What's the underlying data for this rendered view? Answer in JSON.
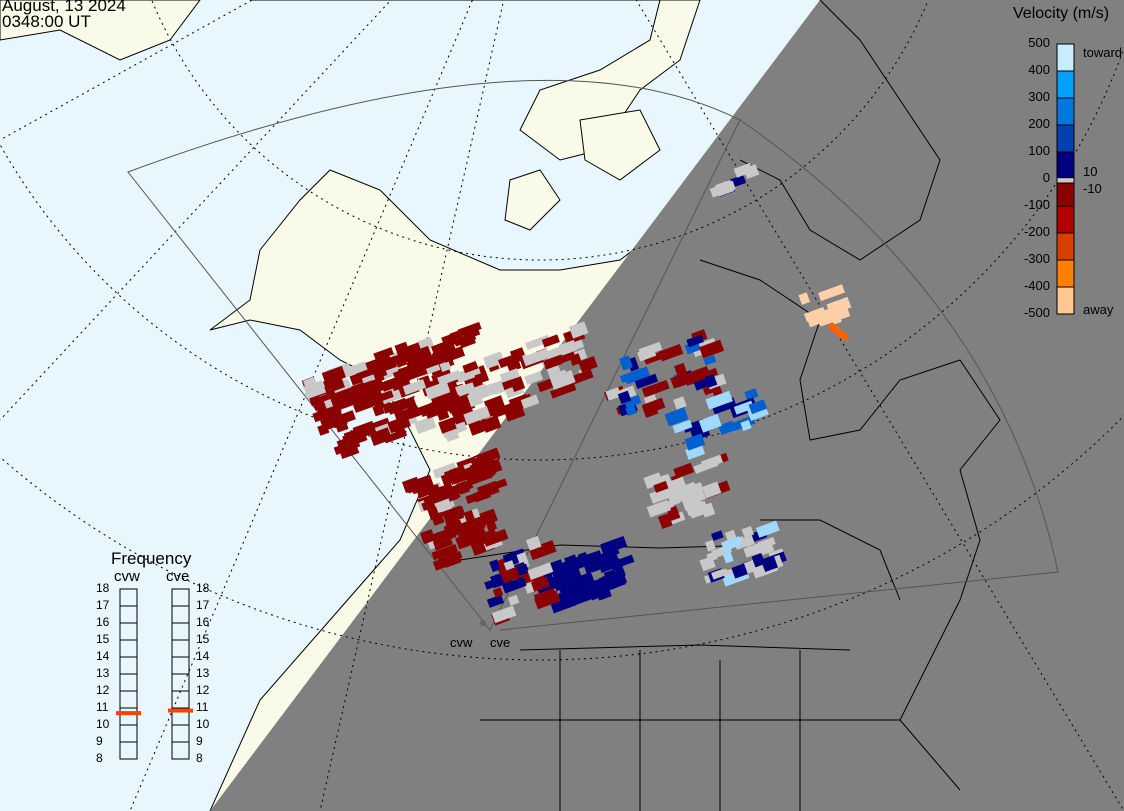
{
  "header": {
    "date": "August, 13 2024",
    "time": "0348:00 UT"
  },
  "colorbar": {
    "title": "Velocity (m/s)",
    "ticks": [
      "500",
      "400",
      "300",
      "200",
      "100",
      "0",
      "-100",
      "-200",
      "-300",
      "-400",
      "-500"
    ],
    "label_toward": "toward",
    "label_away": "away",
    "label_pos": "10",
    "label_neg": "-10",
    "colors": [
      "#c8ecff",
      "#00a0ff",
      "#0078e0",
      "#0040b0",
      "#000080",
      "#c8c8c8",
      "#8b0000",
      "#b00000",
      "#d84000",
      "#ff8000",
      "#ffc890"
    ]
  },
  "frequency": {
    "title": "Frequency",
    "unit_range": [
      8,
      18
    ],
    "ticks": [
      "18",
      "17",
      "16",
      "15",
      "14",
      "13",
      "12",
      "11",
      "10",
      "9",
      "8"
    ],
    "radars": [
      {
        "name": "cvw",
        "value_mhz": 10.7
      },
      {
        "name": "cve",
        "value_mhz": 10.85
      }
    ],
    "marker_color": "#ff4000"
  },
  "map": {
    "radar_labels": [
      "cvw",
      "cve"
    ],
    "colors": {
      "ocean": "#e8f6fe",
      "land": "#fafae8",
      "night": "#808080"
    }
  }
}
